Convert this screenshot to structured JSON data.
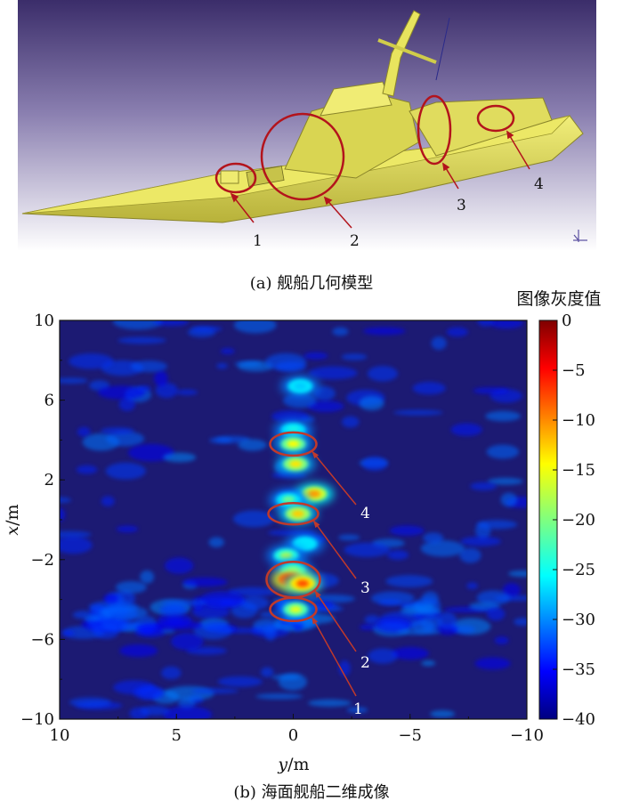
{
  "figure": {
    "panel_a": {
      "caption": "(a) 舰船几何模型",
      "callouts": [
        "1",
        "2",
        "3",
        "4"
      ],
      "colors": {
        "background_top": "#3b2d6a",
        "background_bottom": "#ffffff",
        "ship": "#e6e25a",
        "circle": "#b3141c"
      }
    },
    "panel_b": {
      "caption": "(b) 海面舰船二维成像",
      "colorbar_title": "图像灰度值",
      "xlabel_var": "y",
      "xlabel_unit": "/m",
      "ylabel_var": "x",
      "ylabel_unit": "/m",
      "callouts": [
        "4",
        "3",
        "2",
        "1"
      ],
      "colormap": "jet",
      "colors": {
        "image_background": "#1c1a73",
        "circle": "#c0392b",
        "arrow": "#c0392b"
      }
    }
  },
  "chart_data": {
    "type": "heatmap",
    "x_axis": {
      "label": "y/m",
      "range": [
        10,
        -10
      ],
      "ticks": [
        "10",
        "5",
        "0",
        "−5",
        "−10"
      ]
    },
    "y_axis": {
      "label": "x/m",
      "range": [
        -10,
        10
      ],
      "ticks": [
        "10",
        "6",
        "2",
        "−2",
        "−6",
        "−10"
      ]
    },
    "colorbar": {
      "label": "图像灰度值",
      "range": [
        -40,
        0
      ],
      "ticks": [
        "0",
        "−5",
        "−10",
        "−15",
        "−20",
        "−25",
        "−30",
        "−35",
        "−40"
      ]
    },
    "scatterers": [
      {
        "y": -0.3,
        "x": 6.7,
        "value": -27
      },
      {
        "y": 0.0,
        "x": 4.5,
        "value": -24
      },
      {
        "y": 0.0,
        "x": 3.8,
        "value": -15
      },
      {
        "y": -0.1,
        "x": 2.8,
        "value": -14
      },
      {
        "y": -0.9,
        "x": 1.3,
        "value": -11
      },
      {
        "y": 0.2,
        "x": 1.0,
        "value": -20
      },
      {
        "y": -0.2,
        "x": 0.3,
        "value": -13
      },
      {
        "y": -0.5,
        "x": -1.2,
        "value": -26
      },
      {
        "y": 0.3,
        "x": -1.8,
        "value": -18
      },
      {
        "y": 0.0,
        "x": -2.5,
        "value": -22
      },
      {
        "y": 0.1,
        "x": -3.0,
        "value": -2
      },
      {
        "y": -0.4,
        "x": -3.2,
        "value": -8
      },
      {
        "y": -0.1,
        "x": -4.5,
        "value": -16
      }
    ],
    "annotations": [
      {
        "label": "4",
        "ellipse_center": [
          0.0,
          3.8
        ]
      },
      {
        "label": "3",
        "ellipse_center": [
          0.0,
          0.3
        ]
      },
      {
        "label": "2",
        "ellipse_center": [
          0.0,
          -3.0
        ]
      },
      {
        "label": "1",
        "ellipse_center": [
          0.0,
          -4.5
        ]
      }
    ]
  }
}
